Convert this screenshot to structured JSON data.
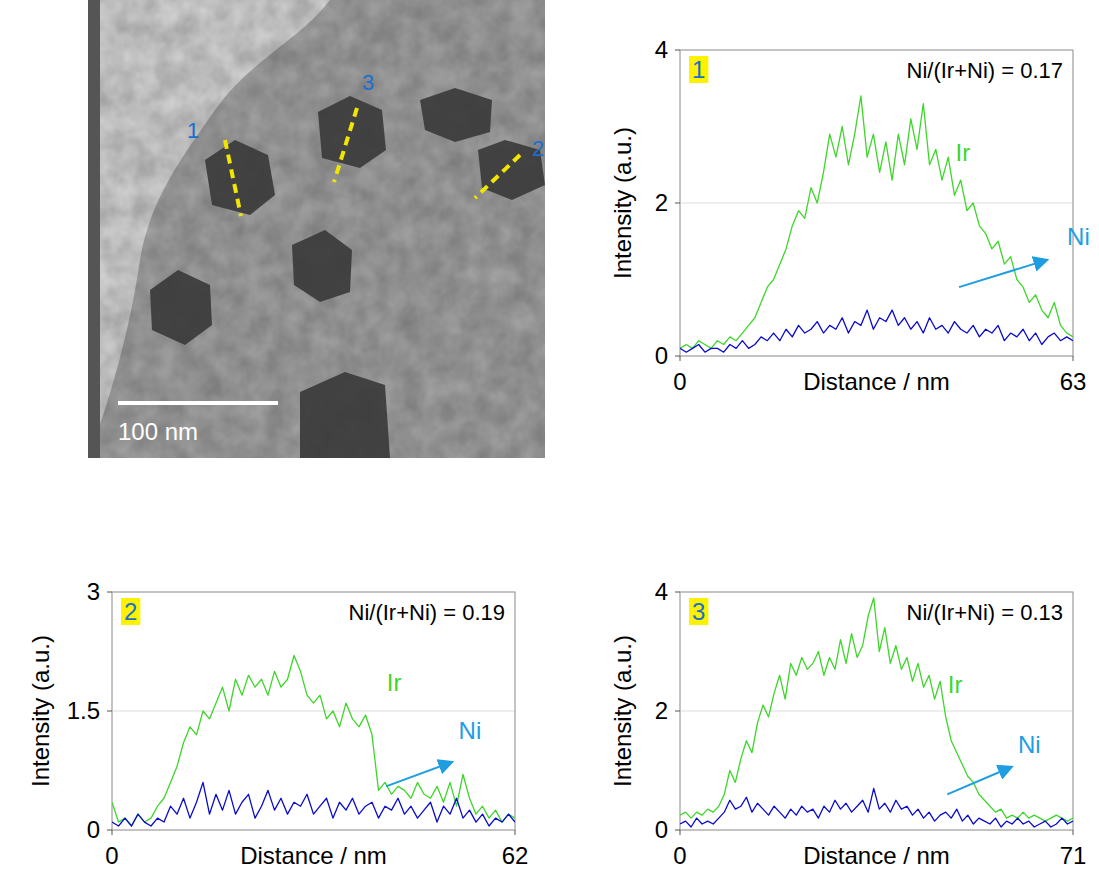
{
  "image": {
    "line_labels": [
      "1",
      "3",
      "2"
    ],
    "scale_bar": "100 nm"
  },
  "chart_data": [
    {
      "type": "line",
      "panel_label": "1",
      "annotation": "Ni/(Ir+Ni) = 0.17",
      "x_label": "Distance / nm",
      "y_label": "Intensity (a.u.)",
      "x": [
        0,
        1,
        2,
        3,
        4,
        5,
        6,
        7,
        8,
        9,
        10,
        11,
        12,
        13,
        14,
        15,
        16,
        17,
        18,
        19,
        20,
        21,
        22,
        23,
        24,
        25,
        26,
        27,
        28,
        29,
        30,
        31,
        32,
        33,
        34,
        35,
        36,
        37,
        38,
        39,
        40,
        41,
        42,
        43,
        44,
        45,
        46,
        47,
        48,
        49,
        50,
        51,
        52,
        53,
        54,
        55,
        56,
        57,
        58,
        59,
        60,
        61,
        62,
        63
      ],
      "series": [
        {
          "name": "Ir",
          "color": "#3ed62a",
          "values": [
            0.1,
            0.15,
            0.1,
            0.2,
            0.15,
            0.1,
            0.2,
            0.15,
            0.25,
            0.2,
            0.3,
            0.4,
            0.5,
            0.7,
            0.9,
            1.0,
            1.2,
            1.4,
            1.7,
            1.9,
            1.8,
            2.2,
            2.0,
            2.4,
            2.9,
            2.6,
            3.0,
            2.5,
            2.9,
            3.4,
            2.6,
            2.9,
            2.4,
            2.8,
            2.3,
            2.9,
            2.5,
            3.1,
            2.7,
            3.3,
            2.5,
            2.7,
            2.3,
            2.6,
            2.1,
            2.3,
            1.9,
            2.0,
            1.7,
            1.6,
            1.4,
            1.5,
            1.2,
            1.3,
            1.0,
            0.9,
            0.7,
            0.8,
            0.6,
            0.5,
            0.7,
            0.4,
            0.3,
            0.25
          ]
        },
        {
          "name": "Ni",
          "color": "#0a0acc",
          "values": [
            0.1,
            0.05,
            0.1,
            0.15,
            0.05,
            0.1,
            0.1,
            0.05,
            0.15,
            0.1,
            0.2,
            0.1,
            0.15,
            0.25,
            0.2,
            0.3,
            0.2,
            0.35,
            0.25,
            0.4,
            0.3,
            0.35,
            0.45,
            0.3,
            0.4,
            0.35,
            0.5,
            0.3,
            0.45,
            0.4,
            0.6,
            0.35,
            0.5,
            0.45,
            0.6,
            0.4,
            0.5,
            0.35,
            0.45,
            0.3,
            0.5,
            0.35,
            0.4,
            0.3,
            0.45,
            0.35,
            0.3,
            0.4,
            0.25,
            0.35,
            0.3,
            0.4,
            0.2,
            0.3,
            0.25,
            0.35,
            0.2,
            0.3,
            0.15,
            0.25,
            0.3,
            0.2,
            0.25,
            0.2
          ]
        }
      ],
      "xlim": [
        0,
        63
      ],
      "xticks": [
        0,
        63
      ],
      "ylim": [
        0,
        4
      ],
      "yticks": [
        0,
        2,
        4
      ],
      "grid": true
    },
    {
      "type": "line",
      "panel_label": "2",
      "annotation": "Ni/(Ir+Ni) = 0.19",
      "x_label": "Distance / nm",
      "y_label": "Intensity (a.u.)",
      "x": [
        0,
        1,
        2,
        3,
        4,
        5,
        6,
        7,
        8,
        9,
        10,
        11,
        12,
        13,
        14,
        15,
        16,
        17,
        18,
        19,
        20,
        21,
        22,
        23,
        24,
        25,
        26,
        27,
        28,
        29,
        30,
        31,
        32,
        33,
        34,
        35,
        36,
        37,
        38,
        39,
        40,
        41,
        42,
        43,
        44,
        45,
        46,
        47,
        48,
        49,
        50,
        51,
        52,
        53,
        54,
        55,
        56,
        57,
        58,
        59,
        60,
        61,
        62
      ],
      "series": [
        {
          "name": "Ir",
          "color": "#3ed62a",
          "values": [
            0.35,
            0.1,
            0.15,
            0.05,
            0.2,
            0.1,
            0.15,
            0.3,
            0.4,
            0.6,
            0.8,
            1.1,
            1.3,
            1.2,
            1.5,
            1.4,
            1.6,
            1.8,
            1.5,
            1.9,
            1.7,
            1.95,
            1.8,
            1.9,
            1.7,
            2.0,
            1.8,
            1.9,
            2.2,
            2.0,
            1.7,
            1.6,
            1.7,
            1.4,
            1.5,
            1.3,
            1.6,
            1.4,
            1.3,
            1.45,
            1.2,
            0.5,
            0.6,
            0.45,
            0.55,
            0.5,
            0.4,
            0.6,
            0.45,
            0.4,
            0.55,
            0.35,
            0.6,
            0.3,
            0.7,
            0.4,
            0.2,
            0.3,
            0.15,
            0.25,
            0.1,
            0.2,
            0.15
          ]
        },
        {
          "name": "Ni",
          "color": "#0a0acc",
          "values": [
            0.1,
            0.05,
            0.15,
            0.05,
            0.2,
            0.1,
            0.05,
            0.15,
            0.1,
            0.3,
            0.2,
            0.4,
            0.15,
            0.35,
            0.6,
            0.2,
            0.45,
            0.25,
            0.5,
            0.2,
            0.35,
            0.45,
            0.15,
            0.3,
            0.5,
            0.25,
            0.4,
            0.2,
            0.35,
            0.3,
            0.45,
            0.2,
            0.3,
            0.4,
            0.15,
            0.35,
            0.25,
            0.4,
            0.2,
            0.3,
            0.35,
            0.15,
            0.3,
            0.25,
            0.4,
            0.2,
            0.3,
            0.15,
            0.25,
            0.35,
            0.1,
            0.3,
            0.2,
            0.4,
            0.15,
            0.25,
            0.1,
            0.2,
            0.05,
            0.15,
            0.1,
            0.2,
            0.1
          ]
        }
      ],
      "xlim": [
        0,
        62
      ],
      "xticks": [
        0,
        62
      ],
      "ylim": [
        0,
        3
      ],
      "yticks": [
        0,
        1.5,
        3
      ],
      "grid": true
    },
    {
      "type": "line",
      "panel_label": "3",
      "annotation": "Ni/(Ir+Ni) = 0.13",
      "x_label": "Distance / nm",
      "y_label": "Intensity (a.u.)",
      "x": [
        0,
        1,
        2,
        3,
        4,
        5,
        6,
        7,
        8,
        9,
        10,
        11,
        12,
        13,
        14,
        15,
        16,
        17,
        18,
        19,
        20,
        21,
        22,
        23,
        24,
        25,
        26,
        27,
        28,
        29,
        30,
        31,
        32,
        33,
        34,
        35,
        36,
        37,
        38,
        39,
        40,
        41,
        42,
        43,
        44,
        45,
        46,
        47,
        48,
        49,
        50,
        51,
        52,
        53,
        54,
        55,
        56,
        57,
        58,
        59,
        60,
        61,
        62,
        63,
        64,
        65,
        66,
        67,
        68,
        69,
        70,
        71
      ],
      "series": [
        {
          "name": "Ir",
          "color": "#3ed62a",
          "values": [
            0.25,
            0.3,
            0.2,
            0.3,
            0.25,
            0.35,
            0.3,
            0.4,
            0.6,
            1.0,
            0.8,
            1.2,
            1.5,
            1.3,
            1.8,
            2.1,
            1.9,
            2.3,
            2.6,
            2.2,
            2.8,
            2.6,
            2.9,
            2.7,
            2.8,
            3.0,
            2.6,
            2.9,
            2.7,
            3.2,
            2.8,
            3.3,
            2.9,
            3.1,
            3.6,
            3.9,
            3.0,
            3.4,
            2.8,
            3.1,
            2.7,
            2.9,
            2.5,
            2.8,
            2.4,
            2.6,
            2.2,
            2.5,
            1.9,
            1.5,
            1.3,
            1.1,
            0.9,
            0.8,
            0.6,
            0.5,
            0.4,
            0.3,
            0.35,
            0.2,
            0.25,
            0.2,
            0.3,
            0.2,
            0.25,
            0.2,
            0.15,
            0.2,
            0.25,
            0.2,
            0.15,
            0.2
          ]
        },
        {
          "name": "Ni",
          "color": "#0a0acc",
          "values": [
            0.1,
            0.15,
            0.05,
            0.2,
            0.1,
            0.15,
            0.1,
            0.2,
            0.3,
            0.5,
            0.35,
            0.4,
            0.55,
            0.3,
            0.45,
            0.35,
            0.25,
            0.4,
            0.3,
            0.2,
            0.35,
            0.25,
            0.4,
            0.3,
            0.35,
            0.2,
            0.4,
            0.3,
            0.5,
            0.35,
            0.45,
            0.3,
            0.4,
            0.5,
            0.3,
            0.7,
            0.35,
            0.45,
            0.3,
            0.5,
            0.35,
            0.4,
            0.25,
            0.35,
            0.2,
            0.3,
            0.15,
            0.25,
            0.3,
            0.2,
            0.35,
            0.15,
            0.25,
            0.1,
            0.2,
            0.15,
            0.1,
            0.2,
            0.05,
            0.15,
            0.1,
            0.2,
            0.1,
            0.15,
            0.05,
            0.1,
            0.15,
            0.05,
            0.1,
            0.2,
            0.1,
            0.15
          ]
        }
      ],
      "xlim": [
        0,
        71
      ],
      "xticks": [
        0,
        71
      ],
      "ylim": [
        0,
        4
      ],
      "yticks": [
        0,
        2,
        4
      ],
      "grid": true
    }
  ]
}
